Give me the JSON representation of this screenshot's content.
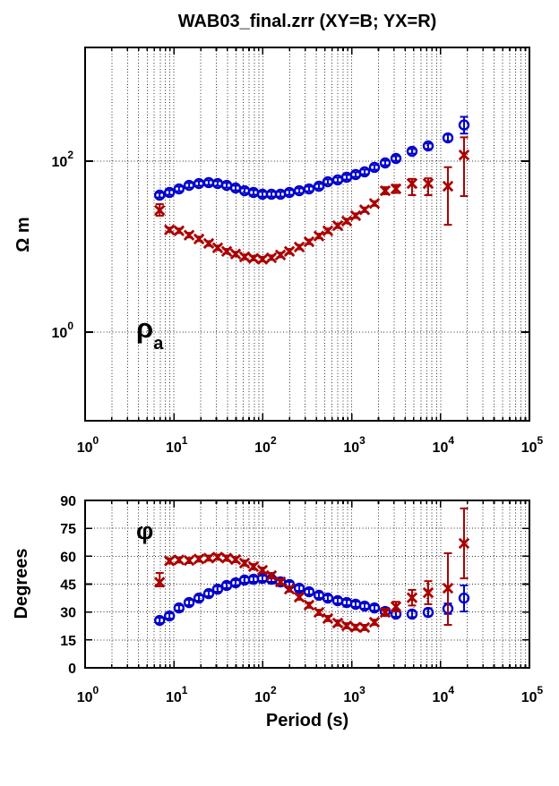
{
  "title": "WAB03_final.zrr (XY=B; YX=R)",
  "tick_base": "10",
  "colors": {
    "xy": "#0000cc",
    "yx": "#aa0000",
    "grid": "#333333",
    "axis": "#000000"
  },
  "top_plot": {
    "ylabel": "Ω m",
    "annotation": "ρ",
    "annotation_sub": "a",
    "ytick_exponents": [
      2,
      0
    ],
    "xtick_exponents": [
      0,
      1,
      2,
      3,
      4,
      5
    ]
  },
  "bottom_plot": {
    "ylabel": "Degrees",
    "xlabel": "Period (s)",
    "annotation": "φ",
    "yticks": [
      0,
      15,
      30,
      45,
      60,
      75,
      90
    ],
    "xtick_exponents": [
      0,
      1,
      2,
      3,
      4,
      5
    ]
  },
  "chart_data": [
    {
      "type": "scatter",
      "title": "WAB03_final.zrr (XY=B; YX=R)",
      "xlabel": "",
      "ylabel": "Ω m",
      "x_scale": "log",
      "y_scale": "log",
      "xlim": [
        1,
        100000
      ],
      "ylim": [
        0.09,
        2100
      ],
      "grid": "x-minor-dotted, y-major-dotted",
      "legend_position": "none (encoded in title: XY=Blue, YX=Red)",
      "x": [
        6.9,
        8.9,
        11.4,
        14.8,
        19.1,
        24.6,
        31,
        39.2,
        49.4,
        62.3,
        78.5,
        99,
        125,
        158,
        199,
        257,
        331,
        428,
        539,
        696,
        879,
        1107,
        1397,
        1803,
        2382,
        3148,
        4777,
        7258,
        12100,
        18365
      ],
      "series": [
        {
          "name": "XY (B)",
          "marker": "circle",
          "color": "#0000cc",
          "values": [
            40,
            43,
            47.3,
            52.1,
            54.7,
            56.1,
            54.7,
            52.1,
            48.5,
            45.1,
            43,
            41,
            41,
            41,
            43,
            45.1,
            47.3,
            50.9,
            57.4,
            60.3,
            64.8,
            69.7,
            74.9,
            84.5,
            95.3,
            107.5,
            130.3,
            150.7,
            187,
            265
          ],
          "err_lo": [
            37.6,
            40.4,
            44.5,
            49,
            51.4,
            52.7,
            51.4,
            49,
            45.6,
            42.4,
            40.4,
            38.5,
            38.5,
            38.5,
            40.4,
            42.4,
            44.5,
            47.8,
            54,
            56.7,
            60.9,
            65.5,
            70.4,
            79.4,
            89.6,
            101,
            122.5,
            139,
            172,
            210
          ],
          "err_hi": [
            42.6,
            45.8,
            50.4,
            55.5,
            58.2,
            59.7,
            58.2,
            55.5,
            51.6,
            48,
            45.8,
            43.7,
            43.7,
            43.7,
            45.8,
            48,
            50.4,
            54.2,
            61.1,
            64.2,
            69,
            74.2,
            79.7,
            90,
            101.5,
            114.5,
            138.7,
            160.5,
            204,
            330
          ]
        },
        {
          "name": "YX (R)",
          "marker": "x",
          "color": "#aa0000",
          "values": [
            26.6,
            15.7,
            15.3,
            13.6,
            12.3,
            10.9,
            9.7,
            8.8,
            8.2,
            7.6,
            7.3,
            7.1,
            7.4,
            8,
            8.8,
            9.9,
            11.4,
            13.3,
            15.3,
            17.6,
            19.9,
            23,
            27,
            32,
            45.1,
            47.4,
            54.7,
            54.7,
            50.9,
            118
          ],
          "err_lo": [
            23,
            14.8,
            14.4,
            12.8,
            11.6,
            10.2,
            9.1,
            8.3,
            7.7,
            7.1,
            6.9,
            6.7,
            7,
            7.5,
            8.3,
            9.3,
            10.7,
            12.5,
            14.4,
            16.5,
            18.7,
            21.6,
            25.4,
            30,
            41,
            42.5,
            40,
            40,
            18,
            39
          ],
          "err_hi": [
            31.4,
            16.7,
            16.3,
            14.5,
            13.1,
            11.6,
            10.3,
            9.4,
            8.7,
            8.1,
            7.8,
            7.6,
            7.9,
            8.5,
            9.4,
            10.5,
            12.1,
            14.2,
            16.3,
            18.7,
            21.2,
            24.5,
            28.7,
            34,
            49.6,
            52.8,
            62,
            63,
            85,
            190
          ]
        }
      ]
    },
    {
      "type": "scatter",
      "title": "",
      "xlabel": "Period (s)",
      "ylabel": "Degrees",
      "x_scale": "log",
      "y_scale": "linear",
      "xlim": [
        1,
        100000
      ],
      "ylim": [
        0,
        90
      ],
      "yticks": [
        0,
        15,
        30,
        45,
        60,
        75,
        90
      ],
      "grid": "x-minor-dotted, y-major-dotted",
      "legend_position": "none (encoded in title: XY=Blue, YX=Red)",
      "x": [
        6.9,
        8.9,
        11.4,
        14.8,
        19.1,
        24.6,
        31,
        39.2,
        49.4,
        62.3,
        78.5,
        99,
        125,
        158,
        199,
        257,
        331,
        428,
        539,
        696,
        879,
        1107,
        1397,
        1803,
        2382,
        3148,
        4777,
        7258,
        12100,
        18365
      ],
      "series": [
        {
          "name": "XY (B)",
          "marker": "circle",
          "color": "#0000cc",
          "values": [
            25.5,
            27.9,
            32.2,
            35.1,
            37.5,
            39.9,
            42.3,
            44.3,
            45.7,
            47.2,
            47.6,
            48.1,
            47.6,
            46.2,
            44.8,
            42.8,
            40.9,
            39,
            37.5,
            36.1,
            35.1,
            34.2,
            33.2,
            32.2,
            30.3,
            28.9,
            28.9,
            29.8,
            31.8,
            37.5
          ],
          "err_lo": [
            24.1,
            26.5,
            30.8,
            33.7,
            36.1,
            38.5,
            40.9,
            42.9,
            44.3,
            45.8,
            46.2,
            46.7,
            46.2,
            44.8,
            43.4,
            41.4,
            39.5,
            37.6,
            36.1,
            34.7,
            33.7,
            32.8,
            31.8,
            30.8,
            28.9,
            27.5,
            27.2,
            27.8,
            29,
            30.3
          ],
          "err_hi": [
            26.9,
            29.3,
            33.6,
            36.5,
            38.9,
            41.3,
            43.7,
            45.7,
            47.1,
            48.6,
            49,
            49.5,
            49,
            47.6,
            46.2,
            44.2,
            42.3,
            40.4,
            38.9,
            37.5,
            36.5,
            35.6,
            34.6,
            33.6,
            31.7,
            30.3,
            30.6,
            31.8,
            34.6,
            44.3
          ]
        },
        {
          "name": "YX (R)",
          "marker": "x",
          "color": "#aa0000",
          "values": [
            46,
            57.5,
            58,
            57.7,
            58.5,
            59,
            59.5,
            59,
            58.2,
            56.3,
            54.4,
            52.5,
            49.6,
            46.2,
            42.3,
            38,
            33.7,
            29.8,
            26.5,
            24.1,
            22.6,
            21.8,
            21.7,
            24.5,
            29.8,
            32.9,
            37.7,
            40.4,
            42.8,
            66.9
          ],
          "err_lo": [
            43.8,
            56.1,
            56.6,
            56.3,
            57.1,
            57.6,
            58.1,
            57.6,
            56.8,
            54.9,
            53,
            51.1,
            48.2,
            44.8,
            40.9,
            36.6,
            32.3,
            28.4,
            25.1,
            22.7,
            21.2,
            20.4,
            20.3,
            23.1,
            27.9,
            30.3,
            33.5,
            34.2,
            23.1,
            48.1
          ],
          "err_hi": [
            51,
            58.9,
            59.4,
            59.1,
            59.9,
            60.4,
            60.9,
            60.4,
            59.6,
            57.7,
            55.8,
            53.9,
            51,
            47.6,
            43.7,
            39.4,
            35.1,
            31.2,
            27.9,
            25.5,
            24,
            23.2,
            23.1,
            25.9,
            31.7,
            35.5,
            41.9,
            46.6,
            61.6,
            85.7
          ]
        }
      ]
    }
  ]
}
